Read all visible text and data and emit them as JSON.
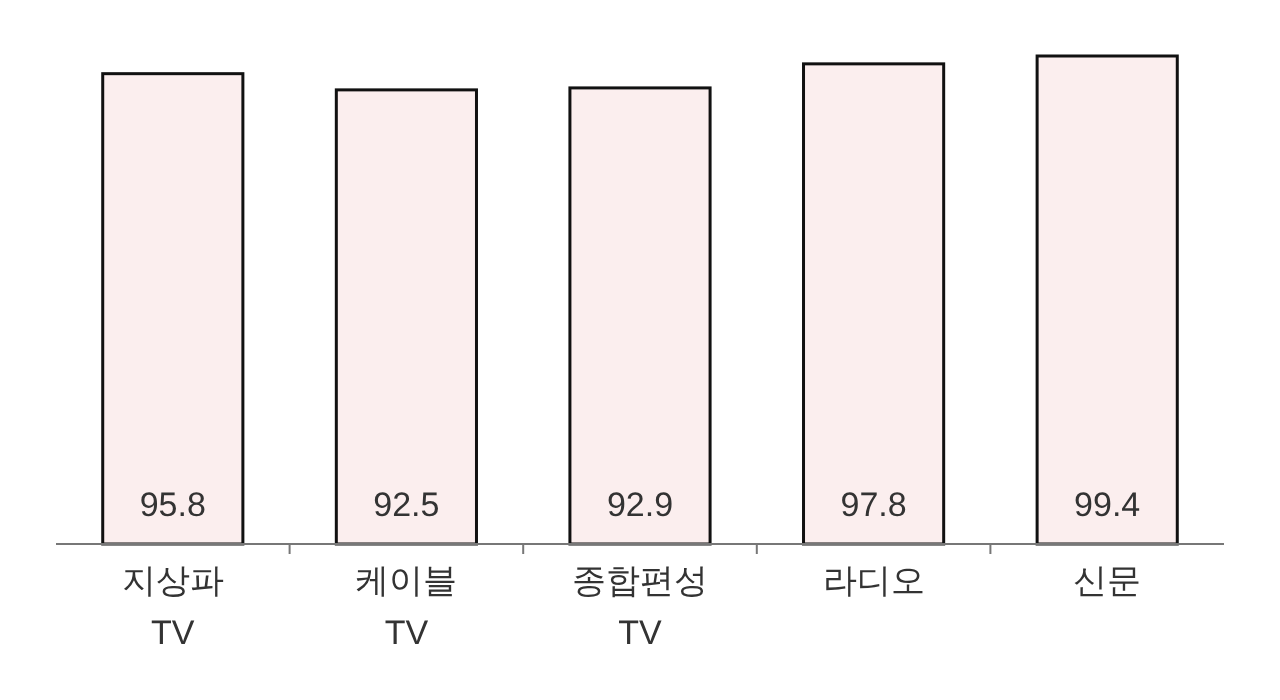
{
  "chart_data": {
    "type": "bar",
    "categories": [
      "지상파\nTV",
      "케이블\nTV",
      "종합편성\nTV",
      "라디오",
      "신문"
    ],
    "values": [
      95.8,
      92.5,
      92.9,
      97.8,
      99.4
    ],
    "color": "#fbeeee",
    "data_labels": true
  }
}
